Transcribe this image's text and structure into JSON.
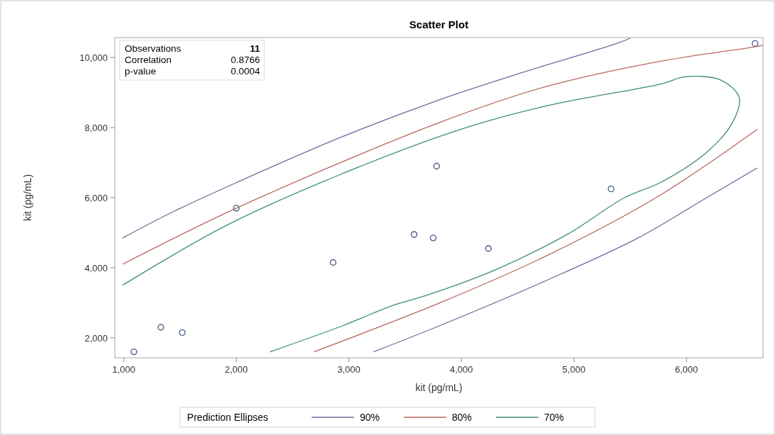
{
  "chart_data": {
    "type": "scatter",
    "title": "Scatter Plot",
    "xlabel": "kit (pg/mL)",
    "ylabel": "kit (pg/mL)",
    "legend_title": "Prediction Ellipses",
    "annotations": [
      "Observations",
      "11",
      "Correlation",
      "0.8766",
      "p-value",
      "0.0004"
    ],
    "xlim": [
      920,
      6680
    ],
    "ylim": [
      1430,
      10570
    ],
    "xticks": [
      {
        "value": 1000,
        "label": "1,000"
      },
      {
        "value": 2000,
        "label": "2,000"
      },
      {
        "value": 3000,
        "label": "3,000"
      },
      {
        "value": 4000,
        "label": "4,000"
      },
      {
        "value": 5000,
        "label": "5,000"
      },
      {
        "value": 6000,
        "label": "6,000"
      }
    ],
    "yticks": [
      {
        "value": 2000,
        "label": "2,000"
      },
      {
        "value": 4000,
        "label": "4,000"
      },
      {
        "value": 6000,
        "label": "6,000"
      },
      {
        "value": 8000,
        "label": "8,000"
      },
      {
        "value": 10000,
        "label": "10,000"
      }
    ],
    "grid": false,
    "legend": "bottom",
    "series": [
      {
        "marker": "circle",
        "color": "#4a5a8a",
        "x": [
          1090,
          1330,
          1520,
          2000,
          2860,
          3580,
          3750,
          3780,
          4240,
          5330,
          6610
        ],
        "values": [
          1600,
          2300,
          2150,
          5700,
          4150,
          4950,
          4850,
          6900,
          4550,
          6250,
          10400
        ]
      },
      {
        "type": "line",
        "name": "90%",
        "color": "#6f6a9e",
        "x": [
          990,
          1440,
          1980,
          2950,
          3810,
          4520,
          5380,
          5500,
          null,
          3220,
          3810,
          4730,
          5570,
          6180,
          6630
        ],
        "values": [
          4850,
          5600,
          6400,
          7750,
          8800,
          9550,
          10400,
          10550,
          null,
          1600,
          2350,
          3600,
          4850,
          6000,
          6850
        ]
      },
      {
        "type": "line",
        "name": "80%",
        "color": "#b5685a",
        "x": [
          990,
          2000,
          3810,
          4730,
          5780,
          6600,
          6680,
          null,
          2690,
          3810,
          4730,
          5730,
          6630
        ],
        "values": [
          4100,
          5700,
          8150,
          9150,
          9900,
          10300,
          10350,
          null,
          1600,
          3000,
          4300,
          6000,
          7950
        ]
      },
      {
        "type": "line",
        "name": "70%",
        "color": "#3f8c7c",
        "x": [
          990,
          2000,
          3810,
          4730,
          5780,
          5990,
          6310,
          6470,
          6410,
          6200,
          5780,
          5450,
          4940,
          4310,
          3680,
          3370,
          2950,
          2300
        ],
        "values": [
          3500,
          5350,
          7750,
          8600,
          9250,
          9450,
          9350,
          8850,
          8150,
          7350,
          6450,
          6000,
          4950,
          3950,
          3200,
          2900,
          2350,
          1600
        ]
      }
    ]
  }
}
